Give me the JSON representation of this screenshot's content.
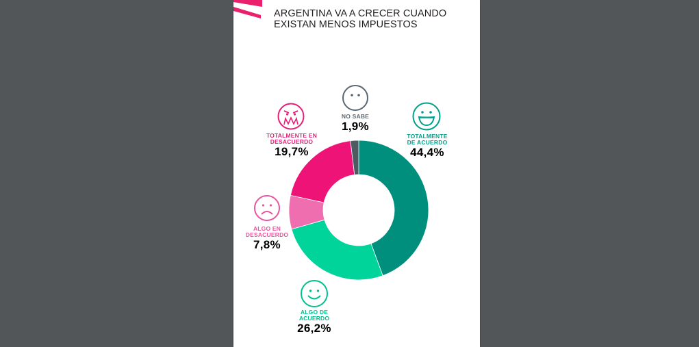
{
  "colors": {
    "viewer_bg": "#525659",
    "page_bg": "#ffffff",
    "brand_accent": "#ea1f6d"
  },
  "header": {
    "title_line1": "ARGENTINA VA A CRECER CUANDO",
    "title_line2": "EXISTAN MENOS IMPUESTOS"
  },
  "chart_data": {
    "type": "pie",
    "variant": "donut",
    "title": "ARGENTINA VA A CRECER CUANDO EXISTAN MENOS IMPUESTOS",
    "series": [
      {
        "name": "TOTALMENTE DE ACUERDO",
        "value": 44.4,
        "label": "44,4%",
        "color": "#008f7d",
        "label_color": "#00a08c",
        "icon": "big-smile-face-icon"
      },
      {
        "name": "ALGO DE ACUERDO",
        "value": 26.2,
        "label": "26,2%",
        "color": "#00d49a",
        "label_color": "#00c08e",
        "icon": "smile-face-icon"
      },
      {
        "name": "ALGO EN DESACUERDO",
        "value": 7.8,
        "label": "7,8%",
        "color": "#ef6eb0",
        "label_color": "#e8559f",
        "icon": "sad-face-icon"
      },
      {
        "name": "TOTALMENTE EN DESACUERDO",
        "value": 19.7,
        "label": "19,7%",
        "color": "#ee1477",
        "label_color": "#e61e78",
        "icon": "angry-face-icon"
      },
      {
        "name": "NO SABE",
        "value": 1.9,
        "label": "1,9%",
        "color": "#4f5b62",
        "label_color": "#5b6770",
        "icon": "neutral-face-icon"
      }
    ]
  },
  "labels": {
    "totalmente_de_acuerdo": "TOTALMENTE\nDE ACUERDO",
    "algo_de_acuerdo": "ALGO DE\nACUERDO",
    "algo_en_desacuerdo": "ALGO EN\nDESACUERDO",
    "totalmente_en_desacuerdo": "TOTALMENTE EN\nDESACUERDO",
    "no_sabe": "NO SABE"
  }
}
